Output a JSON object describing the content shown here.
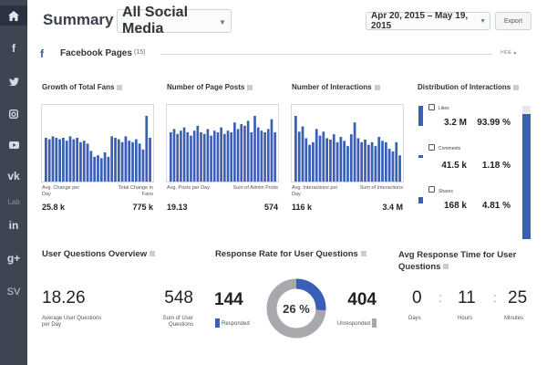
{
  "sidebar": {
    "items": [
      {
        "name": "home-icon",
        "glyph": ""
      },
      {
        "name": "facebook-icon",
        "glyph": "f"
      },
      {
        "name": "twitter-icon",
        "glyph": ""
      },
      {
        "name": "instagram-icon",
        "glyph": ""
      },
      {
        "name": "youtube-icon",
        "glyph": ""
      },
      {
        "name": "vk-icon",
        "glyph": "vk"
      },
      {
        "name": "label-item",
        "glyph": "Lab"
      },
      {
        "name": "linkedin-icon",
        "glyph": "in"
      },
      {
        "name": "googleplus-icon",
        "glyph": "g+"
      },
      {
        "name": "sv-item",
        "glyph": "SV"
      }
    ]
  },
  "header": {
    "summary_label": "Summary for",
    "channel": "All Social Media",
    "date_range": "Apr 20, 2015 – May 19, 2015",
    "export_label": "Export"
  },
  "section": {
    "title": "Facebook Pages",
    "count": "(15)",
    "hide_label": "HIDE ▲"
  },
  "panels": {
    "fans": {
      "title": "Growth of Total Fans",
      "left_caption": "Avg. Change per Day",
      "left_value": "25.8 k",
      "right_caption": "Total Change in Fans",
      "right_value": "775 k"
    },
    "posts": {
      "title": "Number of Page Posts",
      "left_caption": "Avg. Posts per Day",
      "left_value": "19.13",
      "right_caption": "Sum of Admin Posts",
      "right_value": "574"
    },
    "interactions": {
      "title": "Number of Interactions",
      "left_caption": "Avg. Interactions per Day",
      "left_value": "116 k",
      "right_caption": "Sum of Interactions",
      "right_value": "3.4 M"
    },
    "distribution": {
      "title": "Distribution of Interactions",
      "likes_label": "Likes",
      "likes_value": "3.2 M",
      "likes_pct": "93.99 %",
      "comments_label": "Comments",
      "comments_value": "41.5 k",
      "comments_pct": "1.18 %",
      "shares_label": "Shares",
      "shares_value": "168 k",
      "shares_pct": "4.81 %"
    }
  },
  "questions": {
    "title": "User Questions Overview",
    "avg_value": "18.26",
    "avg_caption": "Average User Questions per Day",
    "sum_value": "548",
    "sum_caption": "Sum of User Questions"
  },
  "response_rate": {
    "title": "Response Rate for User Questions",
    "responded_value": "144",
    "responded_label": "Responded",
    "unresponded_value": "404",
    "unresponded_label": "Unresponded",
    "percent_label": "26 %",
    "fraction": 0.26
  },
  "response_time": {
    "title": "Avg Response Time for User Questions",
    "days_value": "0",
    "days_label": "Days",
    "hours_value": "11",
    "hours_label": "Hours",
    "minutes_value": "25",
    "minutes_label": "Minutes"
  },
  "colors": {
    "accent": "#3a5fb6",
    "sidebar": "#3f4452",
    "donut_rest": "#a7a9ad"
  },
  "chart_data": [
    {
      "type": "bar",
      "title": "Growth of Total Fans",
      "values": [
        30,
        29,
        31,
        30,
        29,
        30,
        28,
        31,
        29,
        30,
        27,
        28,
        26,
        21,
        17,
        18,
        16,
        20,
        17,
        31,
        30,
        29,
        27,
        31,
        28,
        27,
        29,
        26,
        22,
        45,
        30
      ]
    },
    {
      "type": "bar",
      "title": "Number of Page Posts",
      "values": [
        30,
        32,
        29,
        31,
        33,
        30,
        28,
        31,
        34,
        30,
        29,
        32,
        28,
        31,
        30,
        33,
        29,
        31,
        30,
        36,
        32,
        35,
        34,
        37,
        30,
        40,
        33,
        31,
        30,
        32,
        38,
        30
      ]
    },
    {
      "type": "bar",
      "title": "Number of Interactions",
      "values": [
        50,
        38,
        42,
        33,
        28,
        30,
        40,
        35,
        38,
        33,
        32,
        36,
        30,
        34,
        31,
        27,
        36,
        45,
        33,
        30,
        32,
        28,
        30,
        27,
        34,
        31,
        30,
        25,
        23,
        30,
        20
      ]
    }
  ]
}
